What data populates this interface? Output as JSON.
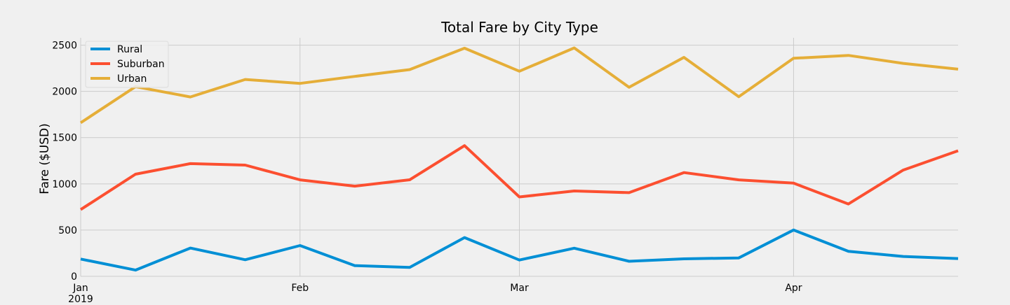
{
  "chart_data": {
    "type": "line",
    "title": "Total Fare by City Type",
    "xlabel": "",
    "ylabel": "Fare ($USD)",
    "x": [
      "2019-01-06",
      "2019-01-13",
      "2019-01-20",
      "2019-01-27",
      "2019-02-03",
      "2019-02-10",
      "2019-02-17",
      "2019-02-24",
      "2019-03-03",
      "2019-03-10",
      "2019-03-17",
      "2019-03-24",
      "2019-03-31",
      "2019-04-07",
      "2019-04-14",
      "2019-04-21",
      "2019-04-28"
    ],
    "xlim": [
      "2019-01-06",
      "2019-04-28"
    ],
    "ylim": [
      0,
      2580
    ],
    "x_ticks": [
      {
        "date": "2019-01-06",
        "label": "Jan",
        "sublabel": "2019"
      },
      {
        "date": "2019-02-03",
        "label": "Feb",
        "sublabel": ""
      },
      {
        "date": "2019-03-03",
        "label": "Mar",
        "sublabel": ""
      },
      {
        "date": "2019-04-07",
        "label": "Apr",
        "sublabel": ""
      }
    ],
    "y_ticks": [
      0,
      500,
      1000,
      1500,
      2000,
      2500
    ],
    "grid": true,
    "legend": "top-left",
    "series": [
      {
        "name": "Rural",
        "color": "#008fd5",
        "values": [
          187,
          67,
          306,
          179,
          333,
          116,
          97,
          419,
          176,
          304,
          163,
          189,
          199,
          501,
          270,
          215,
          192
        ]
      },
      {
        "name": "Suburban",
        "color": "#fc4f30",
        "values": [
          722,
          1105,
          1219,
          1203,
          1043,
          975,
          1044,
          1413,
          859,
          923,
          905,
          1122,
          1043,
          1008,
          782,
          1149,
          1358
        ]
      },
      {
        "name": "Urban",
        "color": "#e5ae38",
        "values": [
          1661,
          2051,
          1940,
          2129,
          2087,
          2162,
          2236,
          2467,
          2218,
          2470,
          2044,
          2368,
          1942,
          2358,
          2389,
          2303,
          2240
        ]
      }
    ]
  }
}
